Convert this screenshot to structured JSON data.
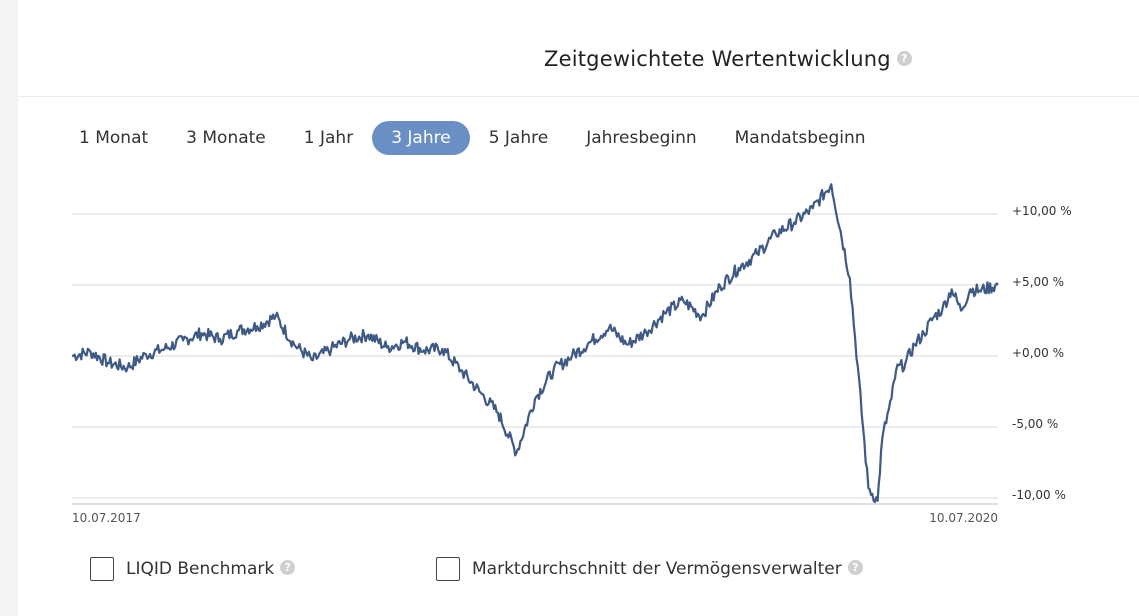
{
  "header": {
    "title": "Zeitgewichtete Wertentwicklung",
    "help_icon": "?"
  },
  "tabs": [
    {
      "label": "1 Monat",
      "active": false
    },
    {
      "label": "3 Monate",
      "active": false
    },
    {
      "label": "1 Jahr",
      "active": false
    },
    {
      "label": "3 Jahre",
      "active": true
    },
    {
      "label": "5 Jahre",
      "active": false
    },
    {
      "label": "Jahresbeginn",
      "active": false
    },
    {
      "label": "Mandatsbeginn",
      "active": false
    }
  ],
  "colors": {
    "accent": "#6a8fc4",
    "line": "#3e5a85",
    "grid": "#d9d9d9"
  },
  "chart_data": {
    "type": "line",
    "title": "",
    "xlabel": "",
    "ylabel": "",
    "ylim": [
      -10,
      10
    ],
    "ytick_values": [
      10,
      5,
      0,
      -5,
      -10
    ],
    "yticks": [
      "+10,00 %",
      "+5,00 %",
      "+0,00 %",
      "-5,00 %",
      "-10,00 %"
    ],
    "x_start_label": "10.07.2017",
    "x_end_label": "10.07.2020",
    "grid": true,
    "series": [
      {
        "name": "",
        "x": [
          0.0,
          0.02,
          0.04,
          0.06,
          0.08,
          0.1,
          0.12,
          0.14,
          0.16,
          0.18,
          0.2,
          0.22,
          0.24,
          0.26,
          0.28,
          0.3,
          0.32,
          0.34,
          0.36,
          0.38,
          0.4,
          0.42,
          0.44,
          0.46,
          0.48,
          0.5,
          0.52,
          0.54,
          0.56,
          0.58,
          0.6,
          0.62,
          0.64,
          0.66,
          0.68,
          0.7,
          0.72,
          0.74,
          0.76,
          0.78,
          0.8,
          0.82,
          0.84,
          0.86,
          0.87,
          0.875,
          0.885,
          0.89,
          0.9,
          0.91,
          0.92,
          0.93,
          0.94,
          0.95,
          0.96,
          0.97,
          0.98,
          1.0
        ],
        "values": [
          0.0,
          0.3,
          -0.5,
          -0.8,
          0.1,
          0.5,
          1.1,
          1.6,
          1.2,
          1.8,
          2.1,
          2.8,
          0.8,
          -0.3,
          0.5,
          1.2,
          1.5,
          0.6,
          1.0,
          0.4,
          0.5,
          -1.0,
          -2.5,
          -4.0,
          -6.8,
          -3.0,
          -1.0,
          0.0,
          1.0,
          2.0,
          0.8,
          1.7,
          3.0,
          3.9,
          2.8,
          4.9,
          6.2,
          7.2,
          8.6,
          9.4,
          10.4,
          12.1,
          5.5,
          -9.3,
          -10.2,
          -5.8,
          -3.0,
          -1.0,
          -0.5,
          0.8,
          1.6,
          2.7,
          3.3,
          4.7,
          3.2,
          4.7,
          4.6,
          5.0
        ]
      }
    ]
  },
  "options": [
    {
      "label": "LIQID Benchmark",
      "checked": false
    },
    {
      "label": "Marktdurchschnitt der Vermögensverwalter",
      "checked": false
    }
  ]
}
